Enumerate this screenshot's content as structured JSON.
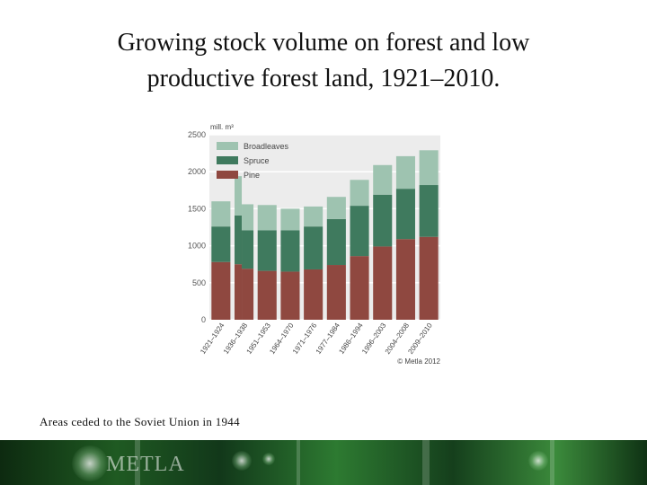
{
  "slide": {
    "title_line1": "Growing stock volume on forest and low",
    "title_line2": "productive forest land, 1921–2010.",
    "footnote": "Areas ceded to the Soviet Union in 1944",
    "logo_text": "METLA"
  },
  "chart_data": {
    "type": "bar",
    "stacked": true,
    "unit_label": "mill. m³",
    "copyright": "© Metla 2012",
    "categories": [
      "1921–1924",
      "1936–1938",
      "1951–1953",
      "1964–1970",
      "1971–1976",
      "1977–1984",
      "1986–1994",
      "1996–2003",
      "2004–2008",
      "2009–2010"
    ],
    "series": [
      {
        "name": "Pine",
        "color": "#8f4840",
        "values": [
          780,
          690,
          660,
          650,
          680,
          740,
          860,
          990,
          1090,
          1120
        ]
      },
      {
        "name": "Spruce",
        "color": "#3f7a5e",
        "values": [
          480,
          520,
          550,
          560,
          580,
          620,
          680,
          700,
          680,
          700
        ]
      },
      {
        "name": "Broadleaves",
        "color": "#9ec3b0",
        "values": [
          340,
          350,
          340,
          290,
          270,
          300,
          350,
          400,
          440,
          470
        ]
      }
    ],
    "ceded_areas": {
      "category_index": 1,
      "pine": 60,
      "spruce": 140,
      "broadleaves": 180
    },
    "ylim": [
      0,
      2500
    ],
    "yticks": [
      0,
      500,
      1000,
      1500,
      2000,
      2500
    ],
    "grid": true,
    "legend_position": "top-left"
  }
}
